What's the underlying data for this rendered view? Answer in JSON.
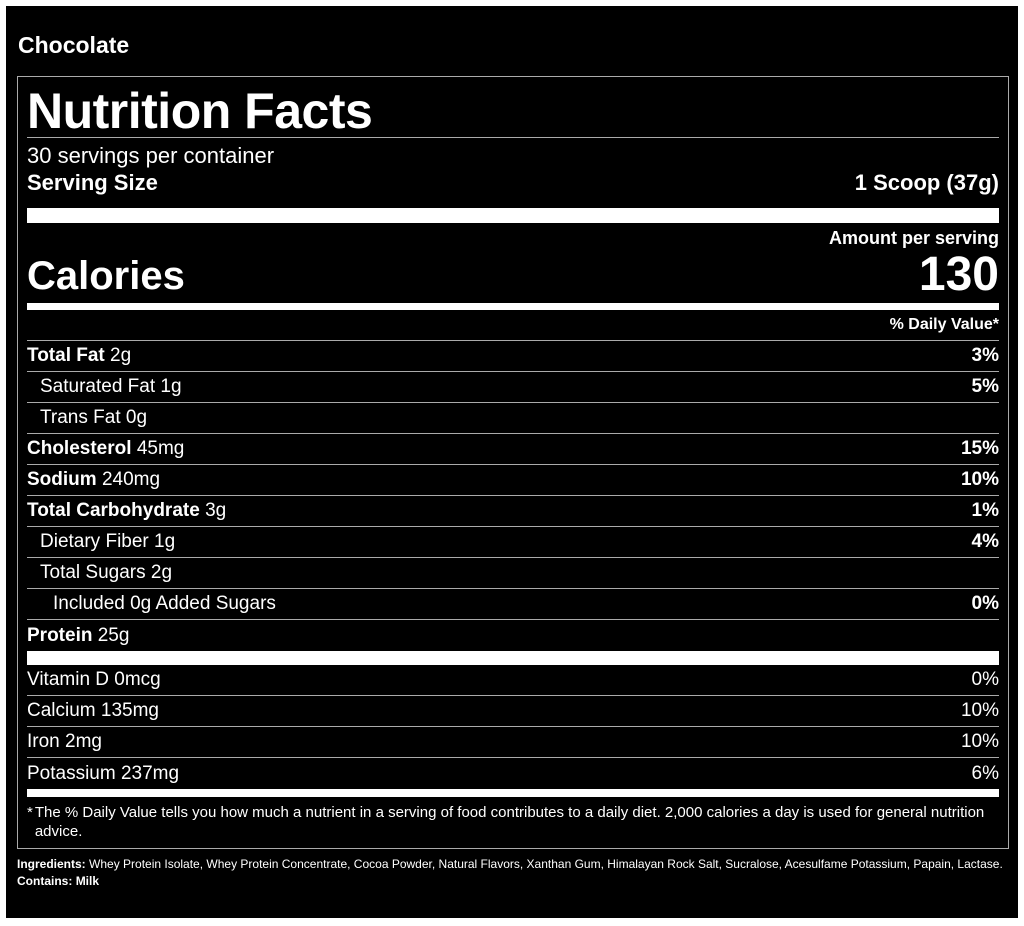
{
  "flavor": "Chocolate",
  "label": {
    "title": "Nutrition Facts",
    "servings": "30 servings per container",
    "serving_size_label": "Serving Size",
    "serving_size": "1 Scoop (37g)",
    "amount_per_serving": "Amount per serving",
    "calories_label": "Calories",
    "calories": "130",
    "daily_value_header": "% Daily Value*",
    "nutrients": [
      {
        "name": "Total Fat",
        "amount": "2g",
        "dv": "3%"
      },
      {
        "name": "Saturated Fat",
        "amount": "1g",
        "dv": "5%"
      },
      {
        "name": "Trans Fat",
        "amount": "0g"
      },
      {
        "name": "Cholesterol",
        "amount": "45mg",
        "dv": "15%"
      },
      {
        "name": "Sodium",
        "amount": "240mg",
        "dv": "10%"
      },
      {
        "name": "Total Carbohydrate",
        "amount": "3g",
        "dv": "1%"
      },
      {
        "name": "Dietary Fiber",
        "amount": "1g",
        "dv": "4%"
      },
      {
        "name": "Total Sugars",
        "amount": "2g"
      },
      {
        "name": "Included 0g Added Sugars",
        "dv": "0%"
      },
      {
        "name": "Protein",
        "amount": "25g"
      }
    ],
    "vitamins": [
      {
        "name": "Vitamin D 0mcg",
        "dv": "0%"
      },
      {
        "name": "Calcium 135mg",
        "dv": "10%"
      },
      {
        "name": "Iron 2mg",
        "dv": "10%"
      },
      {
        "name": "Potassium 237mg",
        "dv": "6%"
      }
    ],
    "footnote_mark": "*",
    "footnote": "The % Daily Value tells you how much a nutrient in a serving of food contributes to a daily diet. 2,000 calories a day is used for general nutrition advice."
  },
  "ingredients_label": "Ingredients:",
  "ingredients": "Whey Protein Isolate, Whey Protein Concentrate, Cocoa Powder, Natural Flavors, Xanthan Gum, Himalayan Rock Salt, Sucralose, Acesulfame Potassium, Papain, Lactase.",
  "contains_label": "Contains:",
  "contains": "Milk"
}
